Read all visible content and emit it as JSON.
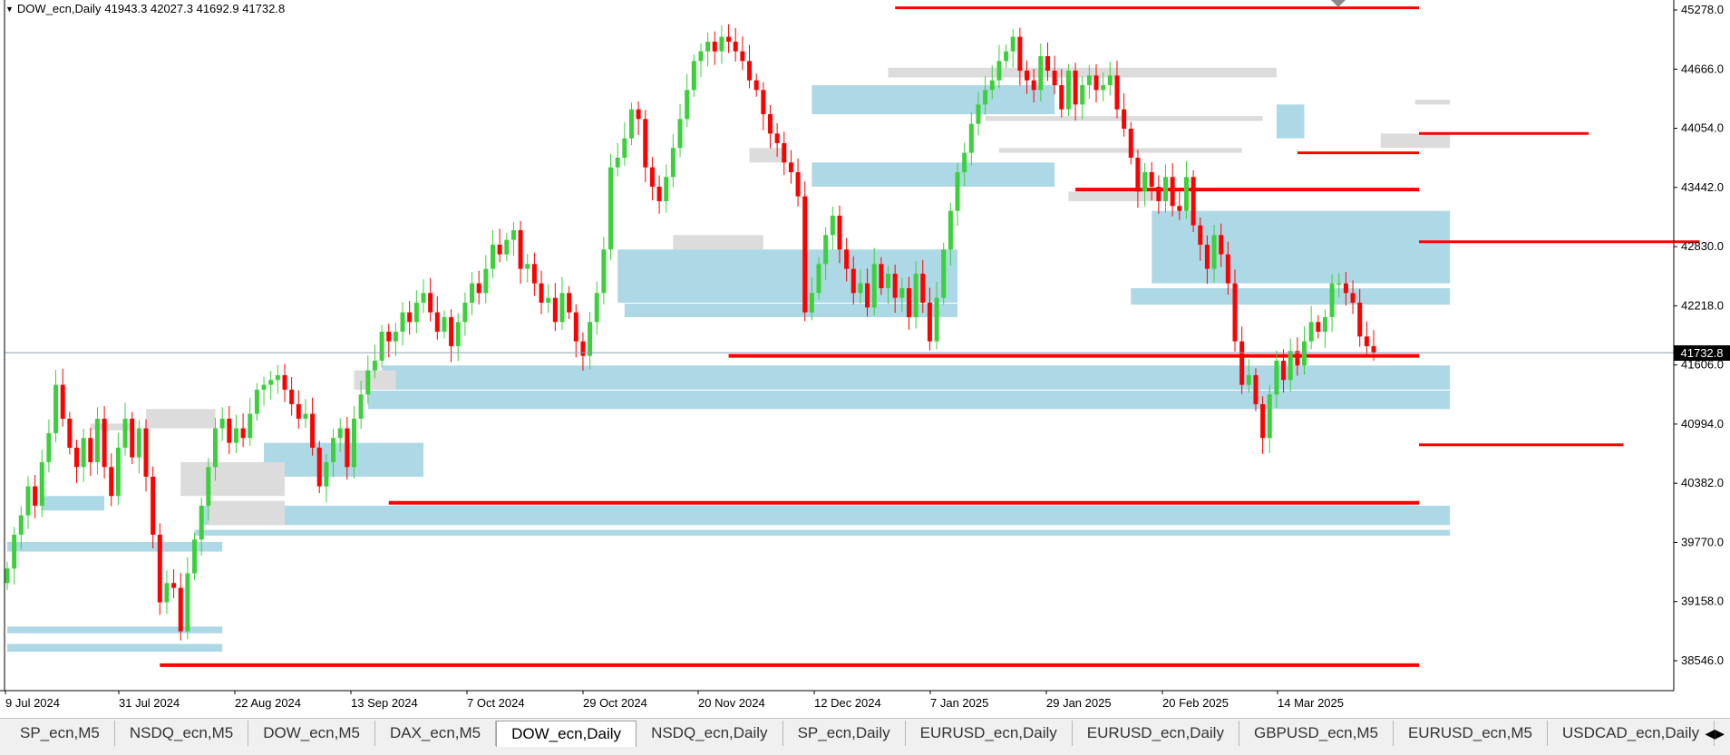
{
  "header": {
    "symbol": "DOW_ecn,Daily",
    "ohlc": "41943.3 42027.3 41692.9 41732.8"
  },
  "current_price": "41732.8",
  "tabs": [
    {
      "label": "SP_ecn,M5",
      "active": false
    },
    {
      "label": "NSDQ_ecn,M5",
      "active": false
    },
    {
      "label": "DOW_ecn,M5",
      "active": false
    },
    {
      "label": "DAX_ecn,M5",
      "active": false
    },
    {
      "label": "DOW_ecn,Daily",
      "active": true
    },
    {
      "label": "NSDQ_ecn,Daily",
      "active": false
    },
    {
      "label": "SP_ecn,Daily",
      "active": false
    },
    {
      "label": "EURUSD_ecn,Daily",
      "active": false
    },
    {
      "label": "EURUSD_ecn,Daily",
      "active": false
    },
    {
      "label": "GBPUSD_ecn,M5",
      "active": false
    },
    {
      "label": "EURUSD_ecn,M5",
      "active": false
    },
    {
      "label": "USDCAD_ecn,Daily",
      "active": false
    }
  ],
  "tab_scroll_glyph": "◀▶",
  "colors": {
    "bull": "#3bd13b",
    "bear": "#ff0000",
    "level": "#ff0000",
    "zone_blue": "#add8e6",
    "zone_gray": "#dcdcdc",
    "price_line": "#8ca0b4"
  },
  "chart_data": {
    "type": "candlestick",
    "y_axis_ticks": [
      "45278.0",
      "44666.0",
      "44054.0",
      "43442.0",
      "42830.0",
      "42218.0",
      "41606.0",
      "40994.0",
      "40382.0",
      "39770.0",
      "39158.0",
      "38546.0"
    ],
    "ylim": [
      38340,
      45420
    ],
    "x_axis_labels": [
      "9 Jul 2024",
      "31 Jul 2024",
      "22 Aug 2024",
      "13 Sep 2024",
      "7 Oct 2024",
      "29 Oct 2024",
      "20 Nov 2024",
      "12 Dec 2024",
      "7 Jan 2025",
      "29 Jan 2025",
      "20 Feb 2025",
      "14 Mar 2025"
    ],
    "current_price": 41732.8,
    "closes": [
      39500,
      39850,
      40050,
      40350,
      40150,
      40600,
      40900,
      41400,
      41050,
      40750,
      40550,
      40850,
      40600,
      41050,
      40550,
      40250,
      40750,
      41050,
      40650,
      40950,
      40450,
      39850,
      39150,
      39350,
      39300,
      38850,
      39450,
      39800,
      40150,
      40550,
      40950,
      41050,
      40800,
      40950,
      40850,
      41100,
      41350,
      41400,
      41450,
      41500,
      41350,
      41200,
      41050,
      41100,
      40750,
      40350,
      40600,
      40850,
      40950,
      40550,
      41050,
      41300,
      41550,
      41650,
      41950,
      41850,
      41950,
      42150,
      42050,
      42250,
      42350,
      42150,
      41950,
      42100,
      41800,
      42050,
      42250,
      42450,
      42350,
      42600,
      42850,
      42750,
      42900,
      43000,
      42600,
      42650,
      42450,
      42250,
      42300,
      42050,
      42350,
      42150,
      41850,
      41700,
      42050,
      42350,
      42800,
      43650,
      43750,
      43950,
      44250,
      44150,
      43650,
      43450,
      43300,
      43550,
      43850,
      44150,
      44450,
      44750,
      44850,
      44950,
      44850,
      45000,
      44950,
      44850,
      44750,
      44550,
      44450,
      44200,
      44000,
      43900,
      43700,
      43600,
      43350,
      42150,
      42350,
      42650,
      42950,
      43150,
      42800,
      42600,
      42350,
      42450,
      42200,
      42650,
      42400,
      42550,
      42300,
      42400,
      42100,
      42550,
      42250,
      41850,
      42300,
      42800,
      43200,
      43600,
      43800,
      44100,
      44300,
      44450,
      44550,
      44750,
      44850,
      45000,
      44650,
      44550,
      44450,
      44800,
      44650,
      44500,
      44250,
      44650,
      44300,
      44500,
      44600,
      44450,
      44500,
      44600,
      44250,
      44050,
      43750,
      43400,
      43600,
      43450,
      43300,
      43550,
      43250,
      43200,
      43550,
      43050,
      42850,
      42600,
      42950,
      42750,
      42450,
      41850,
      41400,
      41500,
      41200,
      40850,
      41300,
      41650,
      41450,
      41750,
      41600,
      41850,
      42050,
      41950,
      42100,
      42450,
      42450,
      42350,
      42250,
      41900,
      41800,
      41733
    ]
  }
}
